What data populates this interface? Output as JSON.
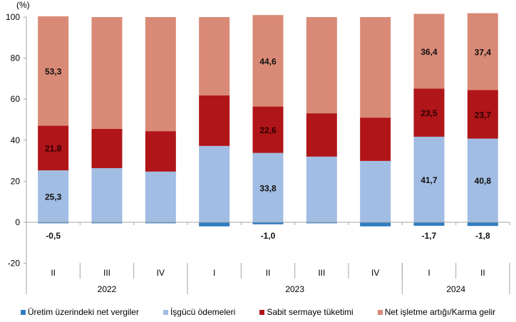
{
  "chart_data": {
    "type": "bar",
    "stacked": true,
    "unit_label": "(%)",
    "title": "",
    "xlabel": "",
    "ylabel": "(%)",
    "ylim": [
      -20,
      100
    ],
    "yticks": [
      -20,
      0,
      20,
      40,
      60,
      80,
      100
    ],
    "grid": false,
    "legend_position": "bottom",
    "categories": [
      "II",
      "III",
      "IV",
      "I",
      "II",
      "III",
      "IV",
      "I",
      "II"
    ],
    "groups": [
      {
        "label": "2022",
        "categories": [
          "II",
          "III",
          "IV"
        ]
      },
      {
        "label": "2023",
        "categories": [
          "I",
          "II",
          "III",
          "IV"
        ]
      },
      {
        "label": "2024",
        "categories": [
          "I",
          "II"
        ]
      }
    ],
    "series": [
      {
        "name": "Üretim üzerindeki net vergiler",
        "color": "#2e7dc3",
        "values": [
          -0.5,
          -0.5,
          -0.5,
          -2.0,
          -1.0,
          -0.5,
          -2.0,
          -1.7,
          -1.8
        ],
        "labels": [
          "-0,5",
          "",
          "",
          "",
          "-1,0",
          "",
          "",
          "-1,7",
          "-1,8"
        ]
      },
      {
        "name": "İşgücü ödemeleri",
        "color": "#a2bde3",
        "values": [
          25.3,
          26.4,
          24.7,
          37.2,
          33.8,
          32.0,
          29.9,
          41.7,
          40.8
        ],
        "labels": [
          "25,3",
          "",
          "",
          "",
          "33,8",
          "",
          "",
          "41,7",
          "40,8"
        ]
      },
      {
        "name": "Sabit sermaye tüketimi",
        "color": "#b01519",
        "values": [
          21.8,
          19.1,
          19.7,
          24.6,
          22.6,
          21.1,
          21.1,
          23.5,
          23.7
        ],
        "labels": [
          "21,8",
          "",
          "",
          "",
          "22,6",
          "",
          "",
          "23,5",
          "23,7"
        ]
      },
      {
        "name": "Net işletme artığı/Karma gelir",
        "color": "#d98a76",
        "values": [
          53.3,
          54.5,
          55.6,
          38.2,
          44.6,
          46.9,
          49.0,
          36.4,
          37.4
        ],
        "labels": [
          "53,3",
          "",
          "",
          "",
          "44,6",
          "",
          "",
          "36,4",
          "37,4"
        ]
      }
    ]
  },
  "legend": [
    {
      "label": "Üretim üzerindeki net vergiler",
      "color": "#2e7dc3"
    },
    {
      "label": "İşgücü ödemeleri",
      "color": "#a2bde3"
    },
    {
      "label": "Sabit sermaye tüketimi",
      "color": "#b01519"
    },
    {
      "label": "Net işletme artığı/Karma gelir",
      "color": "#d98a76"
    }
  ]
}
